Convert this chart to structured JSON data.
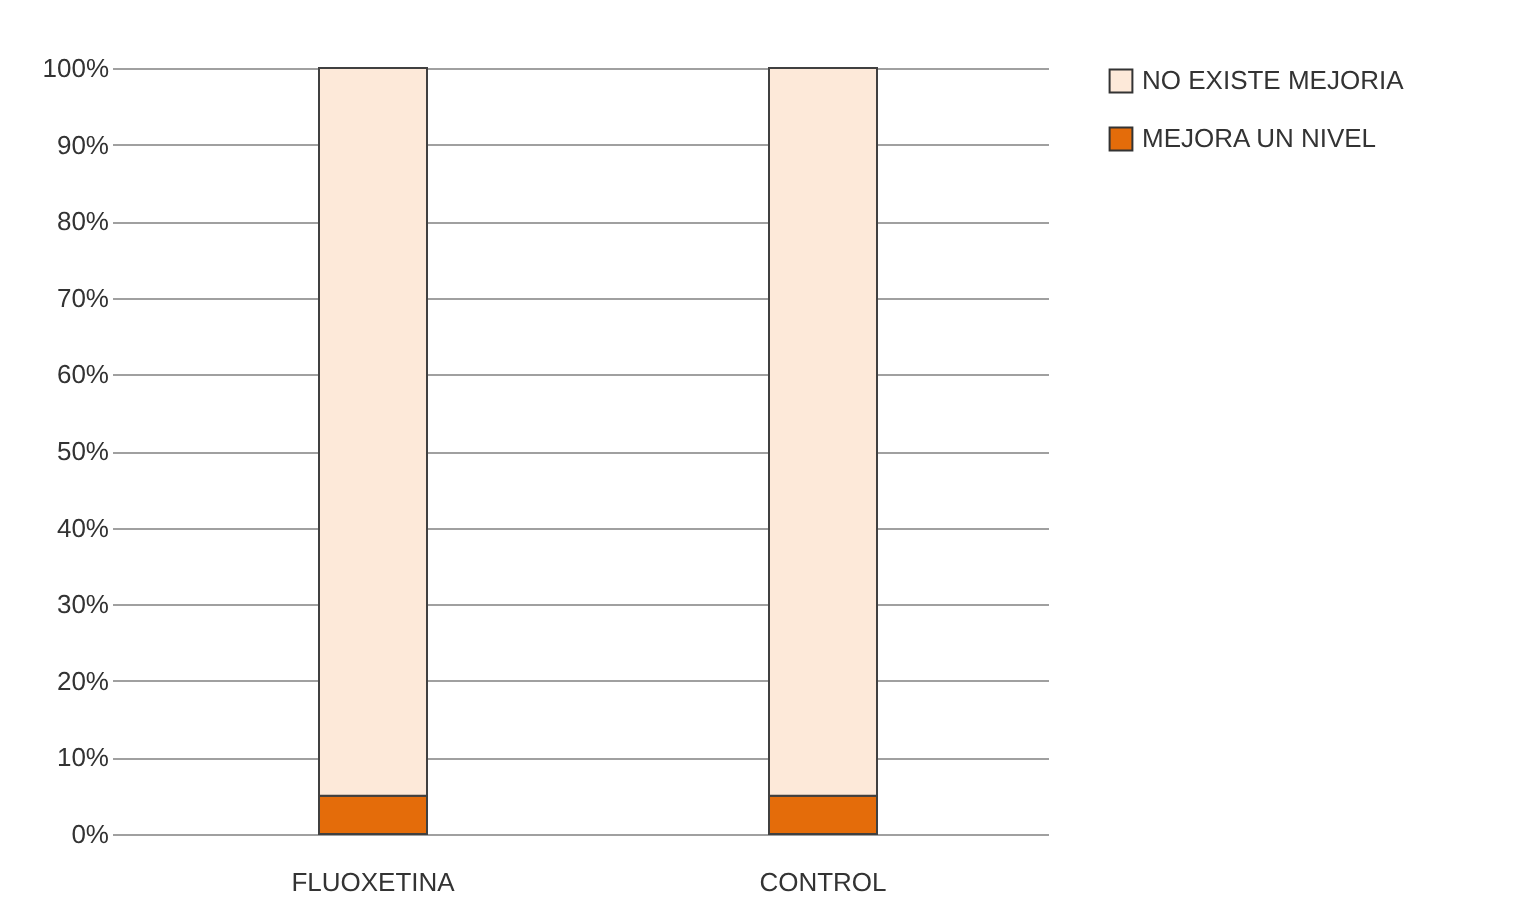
{
  "chart_data": {
    "type": "bar",
    "stacked": true,
    "categories": [
      "FLUOXETINA",
      "CONTROL"
    ],
    "series": [
      {
        "name": "MEJORA UN NIVEL",
        "color": "#e46c0a",
        "values": [
          5,
          5
        ]
      },
      {
        "name": "NO EXISTE MEJORIA",
        "color": "#fde9d9",
        "values": [
          95,
          95
        ]
      }
    ],
    "ylim": [
      0,
      100
    ],
    "yticks": [
      {
        "value": 0,
        "label": "0%"
      },
      {
        "value": 10,
        "label": "10%"
      },
      {
        "value": 20,
        "label": "20%"
      },
      {
        "value": 30,
        "label": "30%"
      },
      {
        "value": 40,
        "label": "40%"
      },
      {
        "value": 50,
        "label": "50%"
      },
      {
        "value": 60,
        "label": "60%"
      },
      {
        "value": 70,
        "label": "70%"
      },
      {
        "value": 80,
        "label": "80%"
      },
      {
        "value": 90,
        "label": "90%"
      },
      {
        "value": 100,
        "label": "100%"
      }
    ],
    "grid": "y",
    "legend": "right"
  }
}
